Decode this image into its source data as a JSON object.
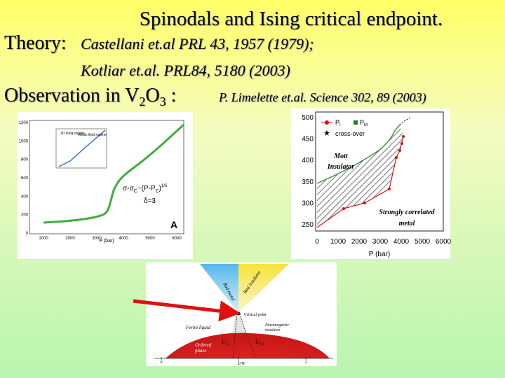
{
  "header": {
    "title": "Spinodals and Ising critical endpoint.",
    "theory_label": "Theory:",
    "theory_ref1": "Castellani et.al  PRL 43, 1957 (1979);",
    "theory_ref2": "Kotliar  et.al.    PRL84, 5180 (2003)",
    "observation": {
      "prefix": "Observation in V",
      "sub1": "2",
      "middle": "O",
      "sub2": "3",
      "suffix": " :",
      "reference": "P. Limelette et.al. Science 302, 89 (2003)"
    }
  },
  "figure_conductivity": {
    "x_label": "P (bar)",
    "x_ticks": [
      "1000",
      "2000",
      "3000",
      "4000",
      "5000",
      "6000"
    ],
    "y_ticks": [
      "0",
      "200",
      "400",
      "600",
      "800",
      "1000",
      "1200"
    ],
    "inset_label": "3D Ising regime",
    "inset_label2": "Mean field regime",
    "formula": "σ-σ",
    "formula_sub": "C",
    "formula_rest": "~(P-P",
    "formula_sub2": "C",
    "formula_end": ")",
    "formula_exp": "1/δ",
    "delta": "δ=3",
    "panel": "A"
  },
  "figure_phase": {
    "x_label": "P (bar)",
    "x_ticks": [
      "0",
      "1000",
      "2000",
      "3000",
      "4000",
      "5000",
      "6000"
    ],
    "y_ticks": [
      "250",
      "300",
      "350",
      "400",
      "450",
      "500"
    ],
    "legend_p1": "P",
    "legend_p1_sub": "I",
    "legend_pm": "P",
    "legend_pm_sub": "M",
    "legend_cross": "cross-over",
    "region1_line1": "Mott",
    "region1_line2": "Insulator",
    "region2_line1": "Strongly correlated",
    "region2_line2": "metal"
  },
  "figure_theory": {
    "bad_metal": "Bad metal",
    "bad_insulator": "Bad insulator",
    "critical_point": "Critical point",
    "fermi_liquid": "Fermi liquid",
    "paramagnetic_line1": "Paramagnetic",
    "paramagnetic_line2": "insulator",
    "ordered_line1": "Ordered",
    "ordered_line2": "phase",
    "uc1": "U",
    "uc1_sub": "C1",
    "uc2": "U",
    "uc2_sub": "C2",
    "x_label": "U/W",
    "x_ticks": [
      "0",
      "1",
      "2"
    ]
  }
}
